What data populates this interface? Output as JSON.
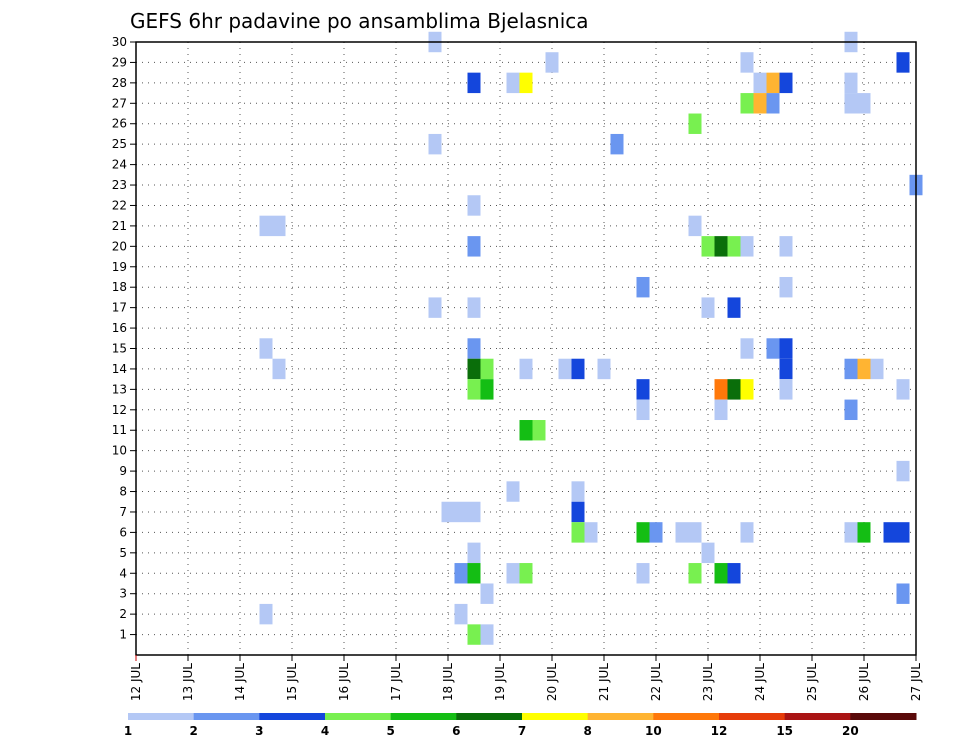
{
  "chart_data": {
    "type": "heatmap",
    "title": "GEFS 6hr padavine po ansamblima Bjelasnica",
    "xlabel": "",
    "ylabel": "",
    "x_unit": "days (Jul 12 - Jul 27), 6-hour steps",
    "x_range": [
      0,
      15
    ],
    "y_range": [
      0,
      30
    ],
    "x_tick_labels": [
      "12 JUL",
      "13 JUL",
      "14 JUL",
      "15 JUL",
      "16 JUL",
      "17 JUL",
      "18 JUL",
      "19 JUL",
      "20 JUL",
      "21 JUL",
      "22 JUL",
      "23 JUL",
      "24 JUL",
      "25 JUL",
      "26 JUL",
      "27 JUL"
    ],
    "y_tick_labels": [
      "1",
      "2",
      "3",
      "4",
      "5",
      "6",
      "7",
      "8",
      "9",
      "10",
      "11",
      "12",
      "13",
      "14",
      "15",
      "16",
      "17",
      "18",
      "19",
      "20",
      "21",
      "22",
      "23",
      "24",
      "25",
      "26",
      "27",
      "28",
      "29",
      "30"
    ],
    "grid": true,
    "colorbar": {
      "labels": [
        "1",
        "2",
        "3",
        "4",
        "5",
        "6",
        "7",
        "8",
        "10",
        "12",
        "15",
        "20"
      ],
      "colors": [
        "#b4c8f5",
        "#6a96f0",
        "#1446dc",
        "#78f050",
        "#14be14",
        "#0a6e0a",
        "#ffff00",
        "#ffb432",
        "#ff780a",
        "#e63c0a",
        "#aa1414",
        "#5a0a0a"
      ]
    },
    "cells": [
      {
        "member": 30,
        "day": 5.75,
        "level": 1
      },
      {
        "member": 30,
        "day": 13.75,
        "level": 1
      },
      {
        "member": 29,
        "day": 8.0,
        "level": 1
      },
      {
        "member": 29,
        "day": 11.75,
        "level": 1
      },
      {
        "member": 29,
        "day": 14.75,
        "level": 3
      },
      {
        "member": 28,
        "day": 6.5,
        "level": 3
      },
      {
        "member": 28,
        "day": 7.25,
        "level": 1
      },
      {
        "member": 28,
        "day": 7.5,
        "level": 7
      },
      {
        "member": 28,
        "day": 12.0,
        "level": 1
      },
      {
        "member": 28,
        "day": 12.25,
        "level": 8
      },
      {
        "member": 28,
        "day": 12.5,
        "level": 3
      },
      {
        "member": 28,
        "day": 13.75,
        "level": 1
      },
      {
        "member": 27,
        "day": 11.75,
        "level": 4
      },
      {
        "member": 27,
        "day": 12.0,
        "level": 8
      },
      {
        "member": 27,
        "day": 12.25,
        "level": 2
      },
      {
        "member": 27,
        "day": 13.75,
        "level": 1
      },
      {
        "member": 27,
        "day": 14.0,
        "level": 1
      },
      {
        "member": 26,
        "day": 10.75,
        "level": 4
      },
      {
        "member": 25,
        "day": 5.75,
        "level": 1
      },
      {
        "member": 25,
        "day": 9.25,
        "level": 2
      },
      {
        "member": 23,
        "day": 15.0,
        "level": 2
      },
      {
        "member": 22,
        "day": 6.5,
        "level": 1
      },
      {
        "member": 21,
        "day": 2.5,
        "level": 1
      },
      {
        "member": 21,
        "day": 2.75,
        "level": 1
      },
      {
        "member": 21,
        "day": 10.75,
        "level": 1
      },
      {
        "member": 20,
        "day": 6.5,
        "level": 2
      },
      {
        "member": 20,
        "day": 11.0,
        "level": 4
      },
      {
        "member": 20,
        "day": 11.25,
        "level": 6
      },
      {
        "member": 20,
        "day": 11.5,
        "level": 4
      },
      {
        "member": 20,
        "day": 11.75,
        "level": 1
      },
      {
        "member": 20,
        "day": 12.5,
        "level": 1
      },
      {
        "member": 18,
        "day": 9.75,
        "level": 2
      },
      {
        "member": 18,
        "day": 12.5,
        "level": 1
      },
      {
        "member": 17,
        "day": 5.75,
        "level": 1
      },
      {
        "member": 17,
        "day": 6.5,
        "level": 1
      },
      {
        "member": 17,
        "day": 11.0,
        "level": 1
      },
      {
        "member": 17,
        "day": 11.5,
        "level": 3
      },
      {
        "member": 15,
        "day": 2.5,
        "level": 1
      },
      {
        "member": 15,
        "day": 6.5,
        "level": 2
      },
      {
        "member": 15,
        "day": 11.75,
        "level": 1
      },
      {
        "member": 15,
        "day": 12.25,
        "level": 2
      },
      {
        "member": 15,
        "day": 12.5,
        "level": 3
      },
      {
        "member": 14,
        "day": 2.75,
        "level": 1
      },
      {
        "member": 14,
        "day": 6.5,
        "level": 6
      },
      {
        "member": 14,
        "day": 6.75,
        "level": 4
      },
      {
        "member": 14,
        "day": 7.5,
        "level": 1
      },
      {
        "member": 14,
        "day": 8.25,
        "level": 1
      },
      {
        "member": 14,
        "day": 8.5,
        "level": 3
      },
      {
        "member": 14,
        "day": 9.0,
        "level": 1
      },
      {
        "member": 14,
        "day": 12.5,
        "level": 3
      },
      {
        "member": 14,
        "day": 13.75,
        "level": 2
      },
      {
        "member": 14,
        "day": 14.0,
        "level": 8
      },
      {
        "member": 14,
        "day": 14.25,
        "level": 1
      },
      {
        "member": 13,
        "day": 6.5,
        "level": 4
      },
      {
        "member": 13,
        "day": 6.75,
        "level": 5
      },
      {
        "member": 13,
        "day": 9.75,
        "level": 3
      },
      {
        "member": 13,
        "day": 11.25,
        "level": 9
      },
      {
        "member": 13,
        "day": 11.5,
        "level": 6
      },
      {
        "member": 13,
        "day": 11.75,
        "level": 7
      },
      {
        "member": 13,
        "day": 12.5,
        "level": 1
      },
      {
        "member": 13,
        "day": 14.75,
        "level": 1
      },
      {
        "member": 12,
        "day": 9.75,
        "level": 1
      },
      {
        "member": 12,
        "day": 11.25,
        "level": 1
      },
      {
        "member": 12,
        "day": 13.75,
        "level": 2
      },
      {
        "member": 11,
        "day": 7.5,
        "level": 5
      },
      {
        "member": 11,
        "day": 7.75,
        "level": 4
      },
      {
        "member": 9,
        "day": 14.75,
        "level": 1
      },
      {
        "member": 8,
        "day": 7.25,
        "level": 1
      },
      {
        "member": 8,
        "day": 8.5,
        "level": 1
      },
      {
        "member": 7,
        "day": 6.0,
        "level": 1
      },
      {
        "member": 7,
        "day": 6.25,
        "level": 1
      },
      {
        "member": 7,
        "day": 6.5,
        "level": 1
      },
      {
        "member": 7,
        "day": 8.5,
        "level": 3
      },
      {
        "member": 6,
        "day": 8.5,
        "level": 4
      },
      {
        "member": 6,
        "day": 8.75,
        "level": 1
      },
      {
        "member": 6,
        "day": 9.75,
        "level": 5
      },
      {
        "member": 6,
        "day": 10.0,
        "level": 2
      },
      {
        "member": 6,
        "day": 10.5,
        "level": 1
      },
      {
        "member": 6,
        "day": 10.75,
        "level": 1
      },
      {
        "member": 6,
        "day": 11.75,
        "level": 1
      },
      {
        "member": 6,
        "day": 13.75,
        "level": 1
      },
      {
        "member": 6,
        "day": 14.0,
        "level": 5
      },
      {
        "member": 6,
        "day": 14.5,
        "level": 3
      },
      {
        "member": 6,
        "day": 14.75,
        "level": 3
      },
      {
        "member": 5,
        "day": 6.5,
        "level": 1
      },
      {
        "member": 5,
        "day": 11.0,
        "level": 1
      },
      {
        "member": 4,
        "day": 6.25,
        "level": 2
      },
      {
        "member": 4,
        "day": 6.5,
        "level": 5
      },
      {
        "member": 4,
        "day": 7.25,
        "level": 1
      },
      {
        "member": 4,
        "day": 7.5,
        "level": 4
      },
      {
        "member": 4,
        "day": 9.75,
        "level": 1
      },
      {
        "member": 4,
        "day": 10.75,
        "level": 4
      },
      {
        "member": 4,
        "day": 11.25,
        "level": 5
      },
      {
        "member": 4,
        "day": 11.5,
        "level": 3
      },
      {
        "member": 3,
        "day": 6.75,
        "level": 1
      },
      {
        "member": 3,
        "day": 14.75,
        "level": 2
      },
      {
        "member": 2,
        "day": 2.5,
        "level": 1
      },
      {
        "member": 2,
        "day": 6.25,
        "level": 1
      },
      {
        "member": 1,
        "day": 6.5,
        "level": 4
      },
      {
        "member": 1,
        "day": 6.75,
        "level": 1
      }
    ]
  }
}
